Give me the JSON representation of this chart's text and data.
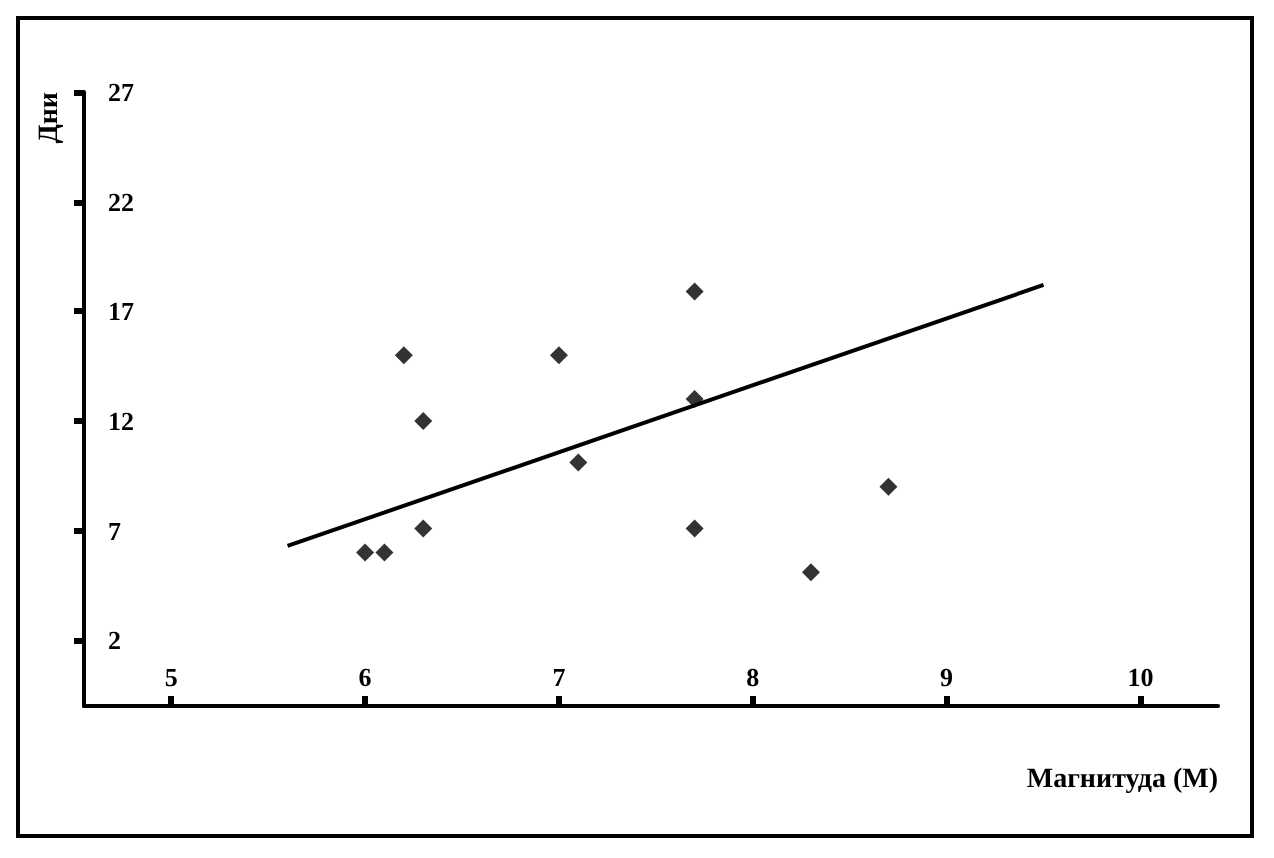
{
  "chart_data": {
    "type": "scatter",
    "xlabel": "Магнитуда (M)",
    "ylabel": "Дни",
    "xlim": [
      4.55,
      10.4
    ],
    "xticks": [
      5,
      6,
      7,
      8,
      9,
      10
    ],
    "ylim": [
      -1,
      27
    ],
    "yticks": [
      2,
      7,
      12,
      17,
      22,
      27
    ],
    "grid": false,
    "series": [
      {
        "color": "#000000",
        "marker": "diamond",
        "x": [
          6.0,
          6.1,
          6.2,
          6.3,
          6.3,
          7.0,
          7.1,
          7.7,
          7.7,
          7.7,
          8.3,
          8.7
        ],
        "values": [
          6.0,
          6.0,
          15.0,
          12.0,
          7.1,
          15.0,
          10.1,
          17.9,
          13.0,
          7.1,
          5.1,
          9.0
        ]
      },
      {
        "type": "line",
        "color": "#000000",
        "marker": "none",
        "x": [
          5.6,
          9.5
        ],
        "values": [
          6.3,
          18.2
        ]
      }
    ]
  }
}
